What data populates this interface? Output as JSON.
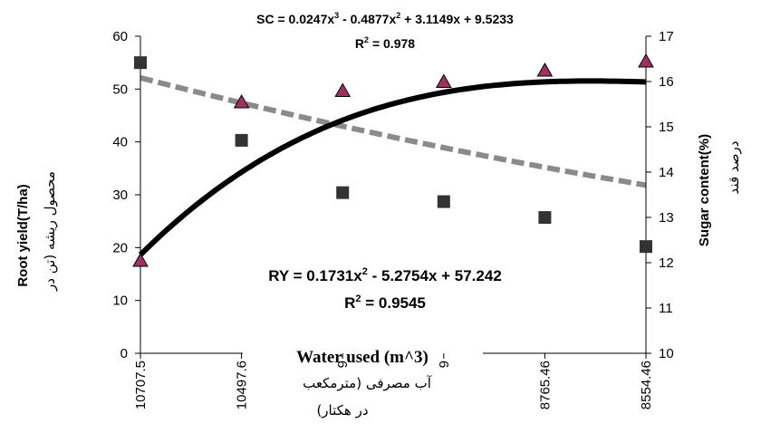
{
  "chart_data": {
    "type": "scatter",
    "categories": [
      "10707.5",
      "10497.6",
      "9",
      "9",
      "8765.46",
      "8554.46"
    ],
    "x": [
      1,
      2,
      3,
      4,
      5,
      6
    ],
    "xlabel": "Water used (m^3)",
    "xlabel_fa": "آب مصرفی (مترمکعب",
    "xlabel_fa_2": "در هکتار)",
    "ylabel_left": "Root yield(T/ha)",
    "ylabel_left_fa": "محصول ریشه (تن در",
    "ylabel_right": "Sugar content(%)",
    "ylabel_right_fa": "درصد قند",
    "ylim_left": [
      0,
      60
    ],
    "yticks_left": [
      0,
      10,
      20,
      30,
      40,
      50,
      60
    ],
    "ylim_right": [
      10,
      17
    ],
    "yticks_right": [
      10,
      11,
      12,
      13,
      14,
      15,
      16,
      17
    ],
    "series": [
      {
        "name": "Root yield",
        "axis": "left",
        "marker": "square",
        "color": "#333333",
        "values": [
          55,
          40.3,
          30.4,
          28.7,
          25.7,
          20.2
        ],
        "trend": {
          "kind": "poly2",
          "coef": [
            0.1731,
            -5.2754,
            57.242
          ],
          "style": "dashed-gray"
        },
        "equation": "RY = 0.1731x2 - 5.2754x + 57.242",
        "r2": "R2 = 0.9545"
      },
      {
        "name": "Sugar content",
        "axis": "right",
        "marker": "triangle",
        "color": "#a0305f",
        "values": [
          12.05,
          15.55,
          15.8,
          16.0,
          16.25,
          16.45
        ],
        "trend": {
          "kind": "poly3",
          "coef": [
            0.0247,
            -0.4877,
            3.1149,
            9.5233
          ],
          "style": "solid-black"
        },
        "equation": "SC = 0.0247x3 - 0.4877x2 + 3.1149x + 9.5233",
        "r2": "R2 = 0.978"
      }
    ]
  }
}
